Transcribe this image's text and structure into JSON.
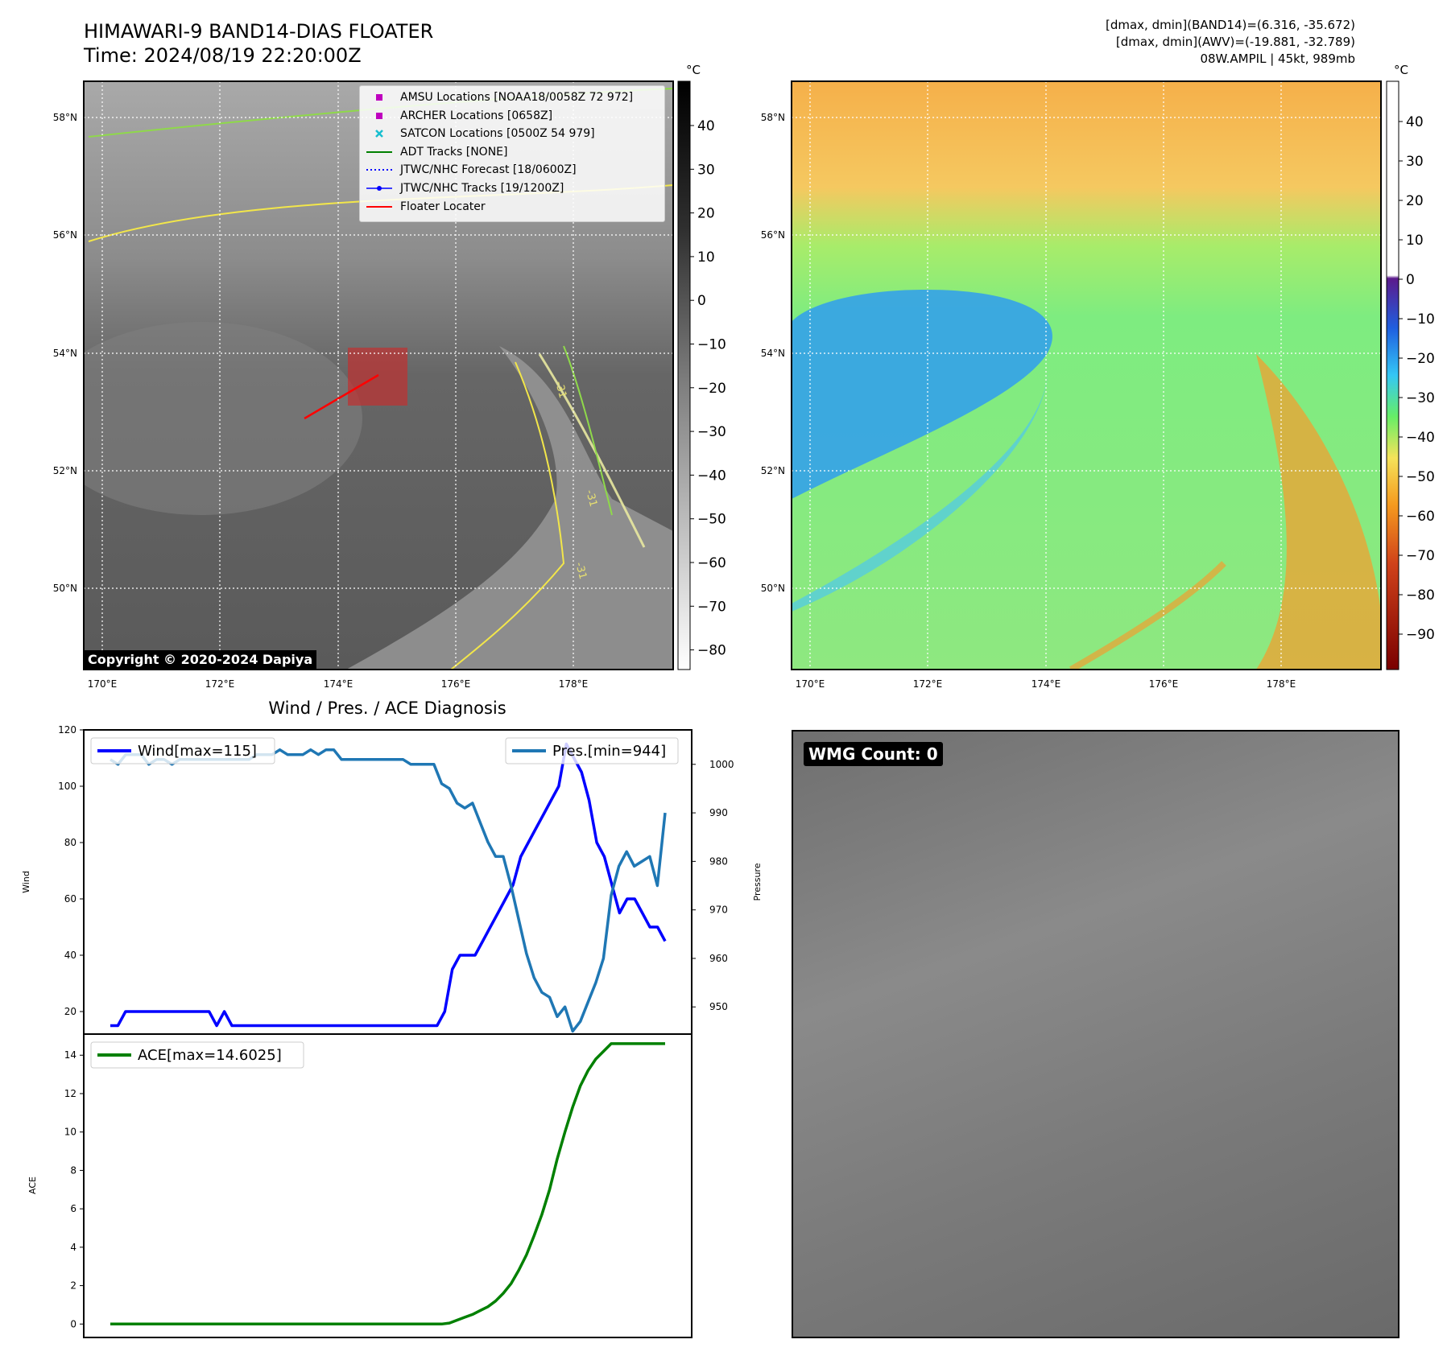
{
  "header": {
    "title_line1": "HIMAWARI-9 BAND14-DIAS FLOATER",
    "title_line2": "Time: 2024/08/19 22:20:00Z",
    "info_line1": "[dmax, dmin](BAND14)=(6.316, -35.672)",
    "info_line2": "[dmax, dmin](AWV)=(-19.881, -32.789)",
    "info_line3": "08W.AMPIL | 45kt, 989mb"
  },
  "map_ir": {
    "lat_labels": [
      "58°N",
      "56°N",
      "54°N",
      "52°N",
      "50°N"
    ],
    "lon_labels": [
      "170°E",
      "172°E",
      "174°E",
      "176°E",
      "178°E"
    ],
    "contour_label": "-31",
    "copyright": "Copyright © 2020-2024 Dapiya",
    "legend": [
      {
        "label": "AMSU Locations [NOAA18/0058Z 72 972]",
        "marker": "square",
        "color": "#bf00bf"
      },
      {
        "label": "ARCHER Locations [0658Z]",
        "marker": "square",
        "color": "#bf00bf"
      },
      {
        "label": "SATCON Locations [0500Z 54 979]",
        "marker": "x",
        "color": "#17becf"
      },
      {
        "label": "ADT Tracks [NONE]",
        "marker": "line",
        "color": "#008000"
      },
      {
        "label": "JTWC/NHC Forecast [18/0600Z]",
        "marker": "dotted",
        "color": "#0000ff"
      },
      {
        "label": "JTWC/NHC Tracks [19/1200Z]",
        "marker": "line-dot",
        "color": "#0000ff"
      },
      {
        "label": "Floater Locater",
        "marker": "line",
        "color": "#ff0000"
      }
    ],
    "colorbar_unit": "°C",
    "colorbar_ticks": [
      "40",
      "30",
      "20",
      "10",
      "0",
      "−10",
      "−20",
      "−30",
      "−40",
      "−50",
      "−60",
      "−70",
      "−80"
    ]
  },
  "map_awv": {
    "lat_labels": [
      "58°N",
      "56°N",
      "54°N",
      "52°N",
      "50°N"
    ],
    "lon_labels": [
      "170°E",
      "172°E",
      "174°E",
      "176°E",
      "178°E"
    ],
    "colorbar_unit": "°C",
    "colorbar_ticks": [
      "40",
      "30",
      "20",
      "10",
      "0",
      "−10",
      "−20",
      "−30",
      "−40",
      "−50",
      "−60",
      "−70",
      "−80",
      "−90"
    ]
  },
  "chart_data": [
    {
      "type": "line",
      "title": "Wind / Pres. / ACE Diagnosis",
      "ylabel": "Wind",
      "y2label": "Pressure",
      "ylim": [
        12,
        120
      ],
      "y2lim": [
        944.4,
        1007.1
      ],
      "yticks": [
        20,
        40,
        60,
        80,
        100,
        120
      ],
      "y2ticks": [
        950,
        960,
        970,
        980,
        990,
        1000
      ],
      "series": [
        {
          "name": "Wind[max=115]",
          "axis": "left",
          "color": "#0000ff",
          "values": [
            15,
            15,
            20,
            20,
            20,
            20,
            20,
            20,
            20,
            20,
            20,
            20,
            20,
            20,
            15,
            20,
            15,
            15,
            15,
            15,
            15,
            15,
            15,
            15,
            15,
            15,
            15,
            15,
            15,
            15,
            15,
            15,
            15,
            15,
            15,
            15,
            15,
            15,
            15,
            15,
            15,
            15,
            15,
            15,
            20,
            35,
            40,
            40,
            40,
            45,
            50,
            55,
            60,
            65,
            75,
            80,
            85,
            90,
            95,
            100,
            115,
            110,
            105,
            95,
            80,
            75,
            65,
            55,
            60,
            60,
            55,
            50,
            50,
            45
          ]
        },
        {
          "name": "Pres.[min=944]",
          "axis": "right",
          "color": "#1f77b4",
          "values": [
            1001,
            1000,
            1002,
            1002,
            1002,
            1000,
            1001,
            1001,
            1000,
            1001,
            1001,
            1001,
            1001,
            1001,
            1001,
            1001,
            1001,
            1001,
            1001,
            1002,
            1002,
            1002,
            1003,
            1002,
            1002,
            1002,
            1003,
            1002,
            1003,
            1003,
            1001,
            1001,
            1001,
            1001,
            1001,
            1001,
            1001,
            1001,
            1001,
            1000,
            1000,
            1000,
            1000,
            996,
            995,
            992,
            991,
            992,
            988,
            984,
            981,
            981,
            975,
            968,
            961,
            956,
            953,
            952,
            948,
            950,
            945,
            947,
            951,
            955,
            960,
            973,
            979,
            982,
            979,
            980,
            981,
            975,
            990
          ]
        },
        {
          "name": "ACE[max=14.6025]",
          "axis": "ace",
          "color": "#008000",
          "ylabel": "ACE",
          "ylim": [
            -0.7,
            15.1
          ],
          "yticks": [
            0,
            2,
            4,
            6,
            8,
            10,
            12,
            14
          ],
          "values": [
            0,
            0,
            0,
            0,
            0,
            0,
            0,
            0,
            0,
            0,
            0,
            0,
            0,
            0,
            0,
            0,
            0,
            0,
            0,
            0,
            0,
            0,
            0,
            0,
            0,
            0,
            0,
            0,
            0,
            0,
            0,
            0,
            0,
            0,
            0,
            0,
            0,
            0,
            0,
            0,
            0,
            0,
            0,
            0,
            0.05,
            0.2,
            0.35,
            0.5,
            0.7,
            0.9,
            1.2,
            1.6,
            2.1,
            2.8,
            3.6,
            4.6,
            5.7,
            7.0,
            8.6,
            10.0,
            11.3,
            12.4,
            13.2,
            13.8,
            14.2,
            14.6,
            14.6,
            14.6,
            14.6,
            14.6,
            14.6,
            14.6,
            14.6
          ]
        }
      ]
    }
  ],
  "wmg": {
    "label": "WMG Count: 0"
  }
}
